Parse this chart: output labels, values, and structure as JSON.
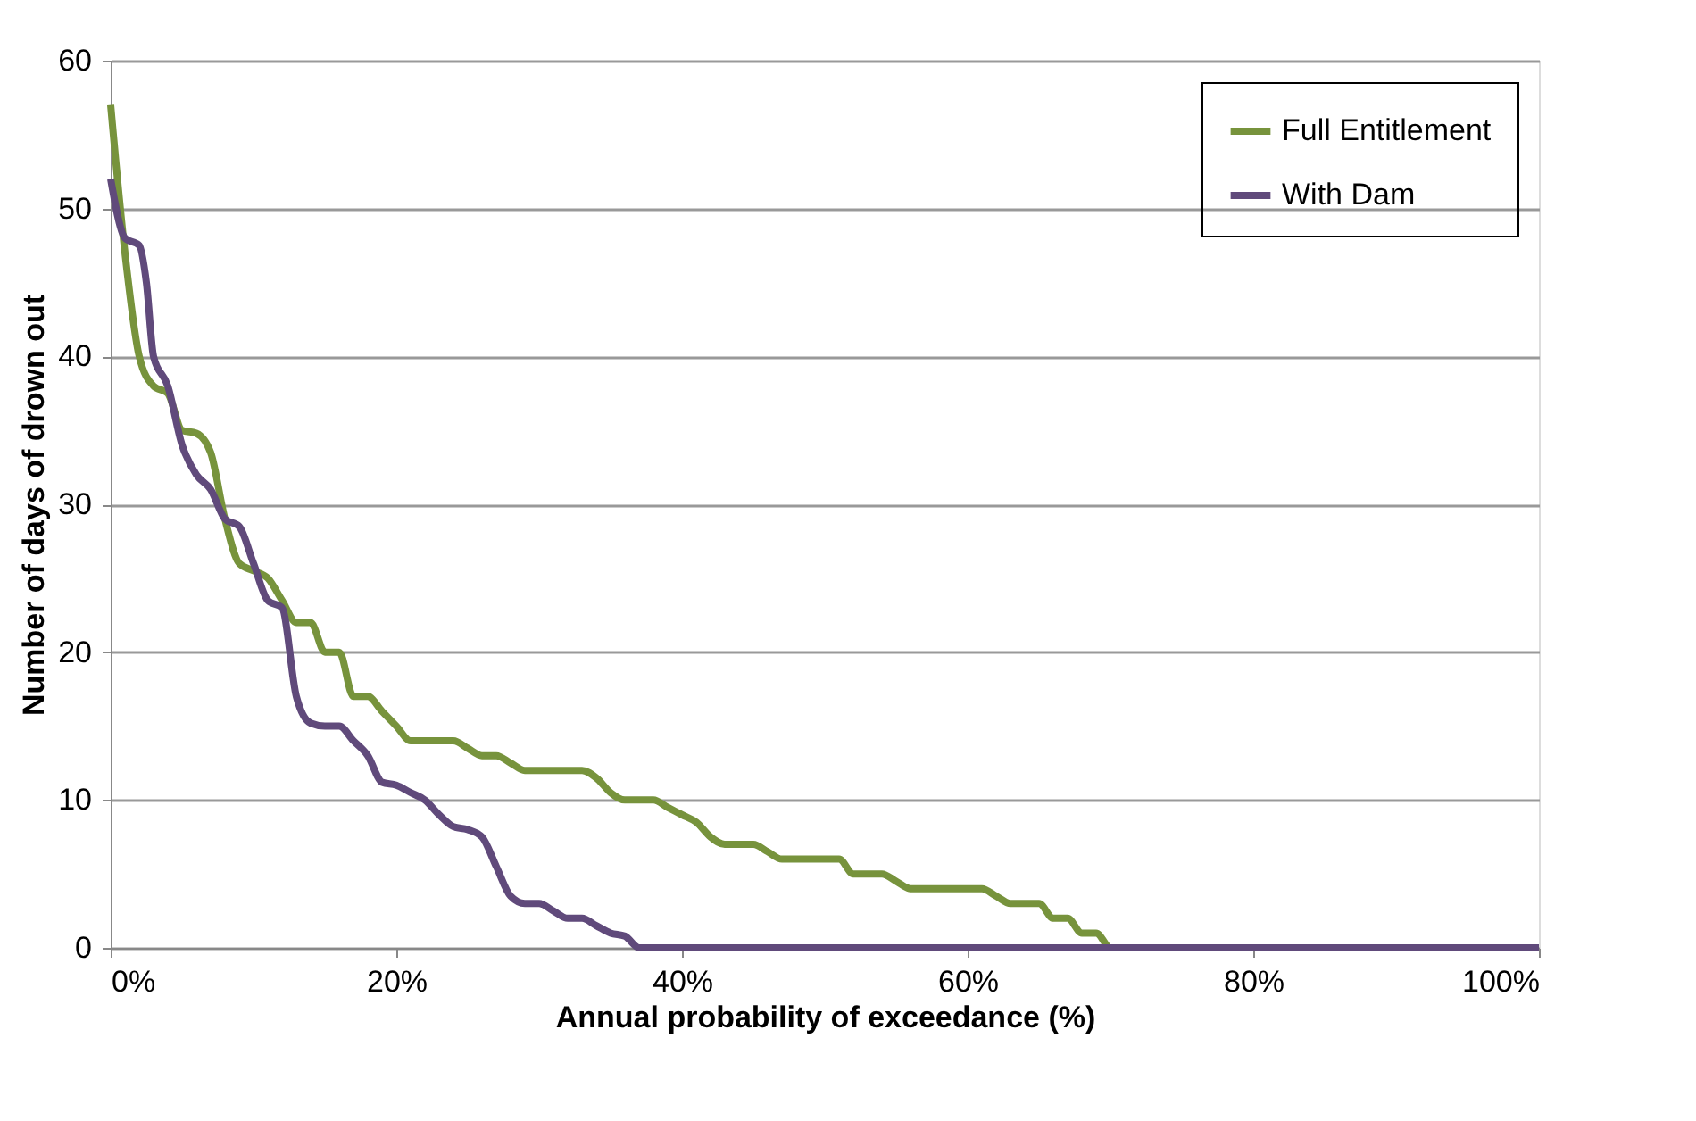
{
  "chart_data": {
    "type": "line",
    "xlabel": "Annual probability of exceedance (%)",
    "ylabel": "Number of days of drown out",
    "xlim": [
      0,
      100
    ],
    "xticks": [
      {
        "value": 0,
        "label": "0%"
      },
      {
        "value": 20,
        "label": "20%"
      },
      {
        "value": 40,
        "label": "40%"
      },
      {
        "value": 60,
        "label": "60%"
      },
      {
        "value": 80,
        "label": "80%"
      },
      {
        "value": 100,
        "label": "100%"
      }
    ],
    "ylim": [
      0,
      60
    ],
    "yticks": [
      0,
      10,
      20,
      30,
      40,
      50,
      60
    ],
    "grid": "y",
    "legend": "top right",
    "marker": "none",
    "line_style": "solid",
    "series": [
      {
        "name": "Full Entitlement",
        "color": "#77933c",
        "x": [
          0,
          1,
          2,
          3,
          4,
          5,
          6,
          7,
          8,
          9,
          10,
          11,
          12,
          13,
          14,
          15,
          16,
          17,
          18,
          19,
          20,
          21,
          22,
          24,
          25,
          26,
          27,
          28,
          29,
          31,
          33,
          34,
          35,
          36,
          38,
          39,
          40,
          41,
          42,
          43,
          45,
          46,
          47,
          51,
          52,
          54,
          55,
          56,
          60,
          61,
          62,
          63,
          65,
          66,
          67,
          68,
          69,
          70,
          100
        ],
        "values": [
          57,
          47,
          40,
          38,
          37.5,
          35,
          34.8,
          33.5,
          29,
          26,
          25.5,
          25,
          23.5,
          22,
          22,
          20,
          20,
          17,
          17,
          16,
          15,
          14,
          14,
          14,
          13.5,
          13,
          13,
          12.5,
          12,
          12,
          12,
          11.5,
          10.5,
          10,
          10,
          9.5,
          9,
          8.5,
          7.5,
          7,
          7,
          6.5,
          6,
          6,
          5,
          5,
          4.5,
          4,
          4,
          4,
          3.5,
          3,
          3,
          2,
          2,
          1,
          1,
          0,
          0
        ]
      },
      {
        "name": "With Dam",
        "color": "#604a7b",
        "x": [
          0,
          1,
          2,
          2.5,
          3,
          4,
          5,
          6,
          7,
          8,
          9,
          10,
          11,
          12,
          13,
          14,
          15,
          16,
          17,
          18,
          19,
          20,
          21,
          22,
          23,
          24,
          25,
          26,
          27,
          28,
          29,
          30,
          31,
          32,
          33,
          34,
          35,
          36,
          37,
          100
        ],
        "values": [
          52,
          48,
          47.5,
          45,
          40,
          38,
          34,
          32,
          31,
          29,
          28.5,
          26,
          23.5,
          23,
          17,
          15.2,
          15,
          15,
          14,
          13,
          11.2,
          11,
          10.5,
          10,
          9,
          8.2,
          8,
          7.5,
          5.5,
          3.5,
          3,
          3,
          2.5,
          2,
          2,
          1.5,
          1,
          0.8,
          0,
          0
        ]
      }
    ]
  }
}
